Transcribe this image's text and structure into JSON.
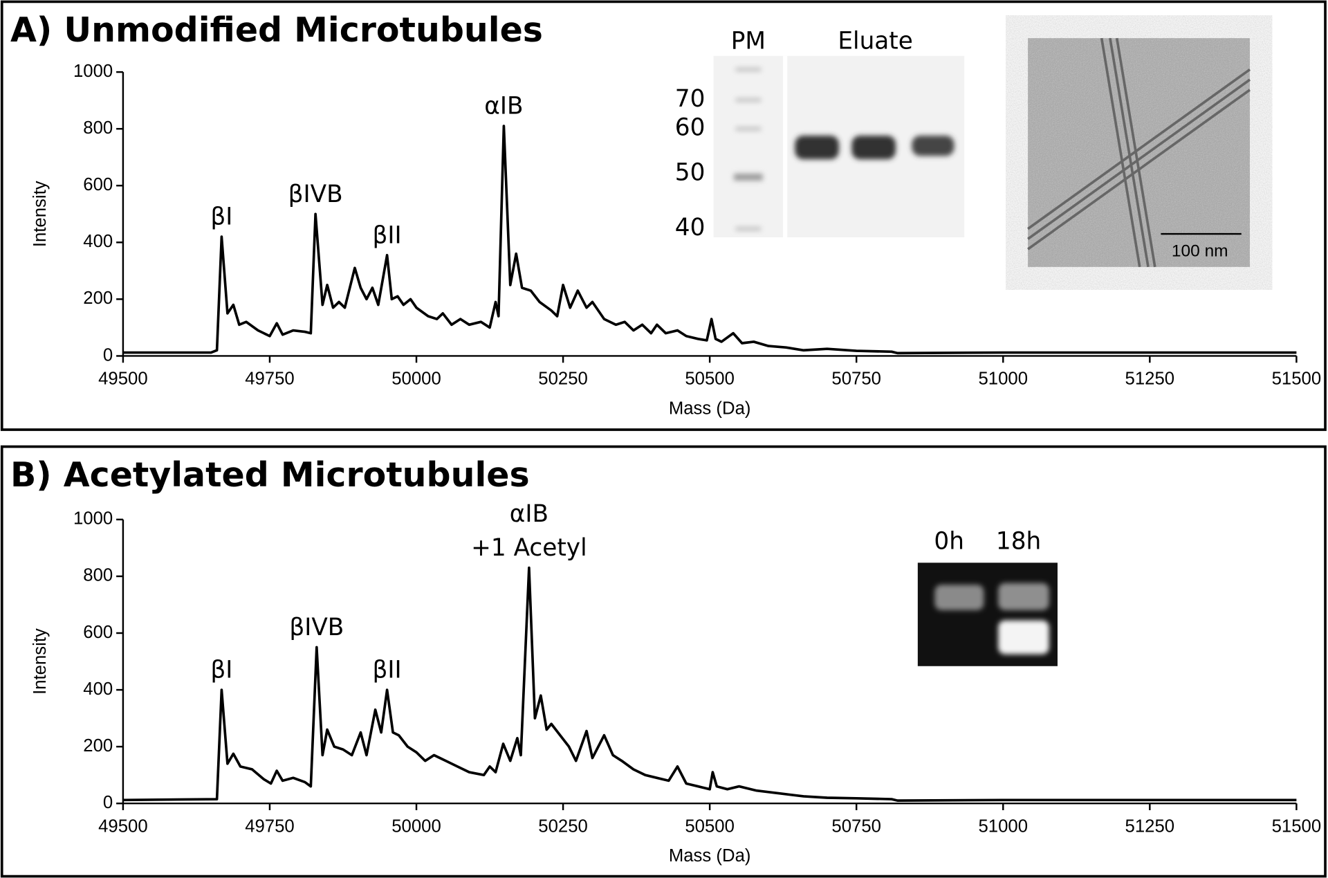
{
  "chart_data": [
    {
      "type": "line",
      "title": "A) Unmodified Microtubules",
      "x_label": "Mass (Da)",
      "y_label": "Intensity",
      "color": "#000000",
      "xlim": [
        49500,
        51500
      ],
      "ylim": [
        0,
        1000
      ],
      "xticks": [
        49500,
        49750,
        50000,
        50250,
        50500,
        50750,
        51000,
        51250,
        51500
      ],
      "yticks": [
        0,
        200,
        400,
        600,
        800,
        1000
      ],
      "x": [
        49500,
        49650,
        49660,
        49668,
        49678,
        49688,
        49698,
        49710,
        49730,
        49750,
        49762,
        49772,
        49790,
        49810,
        49820,
        49828,
        49840,
        49848,
        49858,
        49868,
        49878,
        49895,
        49905,
        49915,
        49925,
        49935,
        49950,
        49958,
        49968,
        49978,
        49990,
        50000,
        50020,
        50035,
        50045,
        50060,
        50075,
        50090,
        50110,
        50125,
        50135,
        50140,
        50149,
        50160,
        50170,
        50180,
        50195,
        50210,
        50230,
        50240,
        50250,
        50262,
        50275,
        50290,
        50300,
        50320,
        50340,
        50355,
        50370,
        50385,
        50400,
        50410,
        50425,
        50445,
        50460,
        50480,
        50495,
        50503,
        50510,
        50520,
        50540,
        50555,
        50575,
        50600,
        50630,
        50660,
        50700,
        50750,
        50810,
        50820,
        51000,
        51500
      ],
      "values": [
        12,
        12,
        20,
        420,
        150,
        180,
        110,
        120,
        90,
        70,
        115,
        75,
        90,
        85,
        80,
        500,
        180,
        250,
        170,
        190,
        170,
        310,
        240,
        200,
        240,
        180,
        355,
        200,
        210,
        180,
        200,
        170,
        140,
        130,
        150,
        110,
        130,
        110,
        120,
        100,
        190,
        140,
        810,
        250,
        360,
        240,
        230,
        190,
        160,
        140,
        250,
        170,
        230,
        170,
        190,
        130,
        110,
        120,
        90,
        110,
        80,
        110,
        80,
        90,
        70,
        60,
        55,
        130,
        60,
        50,
        80,
        45,
        50,
        35,
        30,
        20,
        25,
        18,
        15,
        10,
        12,
        12
      ],
      "annotations": [
        {
          "text": [
            "βI"
          ],
          "x": 49668,
          "y": 420
        },
        {
          "text": [
            "βIVB"
          ],
          "x": 49828,
          "y": 500
        },
        {
          "text": [
            "βII"
          ],
          "x": 49950,
          "y": 355
        },
        {
          "text": [
            "αIB"
          ],
          "x": 50149,
          "y": 810
        }
      ]
    },
    {
      "type": "line",
      "title": "B) Acetylated Microtubules",
      "x_label": "Mass (Da)",
      "y_label": "Intensity",
      "color": "#000000",
      "xlim": [
        49500,
        51500
      ],
      "ylim": [
        0,
        1000
      ],
      "xticks": [
        49500,
        49750,
        50000,
        50250,
        50500,
        50750,
        51000,
        51250,
        51500
      ],
      "yticks": [
        0,
        200,
        400,
        600,
        800,
        1000
      ],
      "x": [
        49500,
        49660,
        49668,
        49678,
        49688,
        49700,
        49720,
        49740,
        49752,
        49762,
        49772,
        49790,
        49810,
        49820,
        49830,
        49840,
        49848,
        49860,
        49875,
        49890,
        49905,
        49915,
        49930,
        49940,
        49950,
        49960,
        49970,
        49985,
        50000,
        50015,
        50030,
        50050,
        50070,
        50090,
        50115,
        50125,
        50135,
        50148,
        50160,
        50172,
        50178,
        50192,
        50202,
        50212,
        50222,
        50230,
        50245,
        50260,
        50272,
        50290,
        50300,
        50320,
        50335,
        50350,
        50370,
        50390,
        50410,
        50430,
        50445,
        50460,
        50480,
        50500,
        50505,
        50512,
        50530,
        50550,
        50580,
        50620,
        50660,
        50700,
        50750,
        50810,
        50820,
        51000,
        51500
      ],
      "values": [
        12,
        15,
        400,
        140,
        175,
        130,
        120,
        85,
        70,
        115,
        80,
        90,
        75,
        60,
        550,
        170,
        260,
        200,
        190,
        170,
        250,
        170,
        330,
        250,
        400,
        250,
        240,
        200,
        180,
        150,
        170,
        150,
        130,
        110,
        100,
        130,
        110,
        210,
        150,
        230,
        170,
        830,
        300,
        380,
        260,
        280,
        240,
        200,
        150,
        255,
        160,
        240,
        170,
        150,
        120,
        100,
        90,
        80,
        130,
        70,
        60,
        50,
        110,
        60,
        50,
        60,
        45,
        35,
        25,
        20,
        18,
        15,
        10,
        12,
        12
      ],
      "annotations": [
        {
          "text": [
            "βI"
          ],
          "x": 49668,
          "y": 400
        },
        {
          "text": [
            "βIVB"
          ],
          "x": 49830,
          "y": 550
        },
        {
          "text": [
            "βII"
          ],
          "x": 49950,
          "y": 400
        },
        {
          "text": [
            "αIB",
            "+1 Acetyl"
          ],
          "x": 50192,
          "y": 830
        }
      ]
    }
  ],
  "insets": {
    "gel": {
      "lane_labels": [
        "PM",
        "Eluate"
      ],
      "markers": [
        70,
        60,
        50,
        40
      ]
    },
    "micrograph": {
      "scale_bar": "100 nm"
    },
    "acetyl_gel": {
      "lane_labels": [
        "0h",
        "18h"
      ]
    }
  }
}
